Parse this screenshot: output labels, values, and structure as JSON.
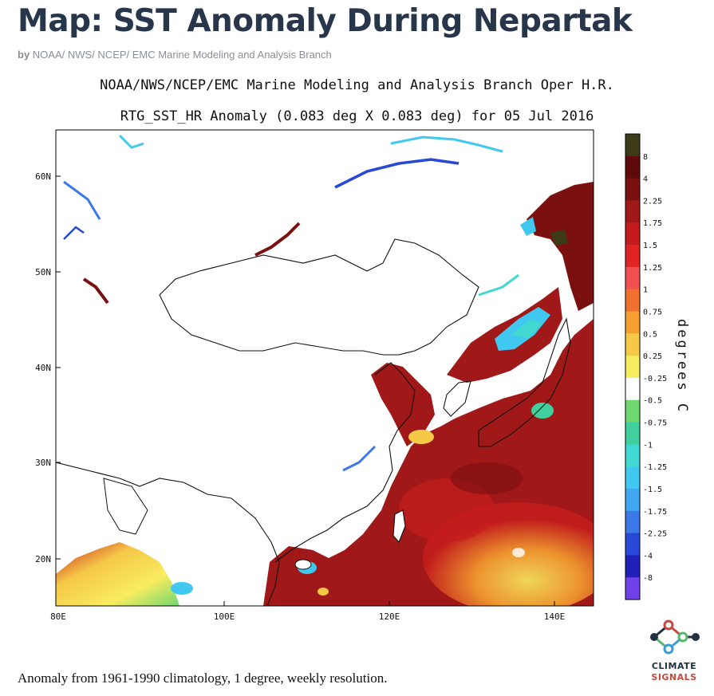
{
  "header": {
    "title": "Map: SST Anomaly During Nepartak",
    "byline_prefix": "by",
    "byline_source": "NOAA/ NWS/ NCEP/ EMC Marine Modeling and Analysis Branch"
  },
  "figure": {
    "header_line1": "NOAA/NWS/NCEP/EMC Marine Modeling and Analysis Branch Oper H.R.",
    "header_line2": "RTG_SST_HR Anomaly (0.083 deg X 0.083 deg) for 05 Jul 2016",
    "lat_labels": [
      "60N",
      "50N",
      "40N",
      "30N",
      "20N"
    ],
    "lon_labels": [
      "80E",
      "100E",
      "120E",
      "140E"
    ],
    "colorbar": {
      "units": "degrees C",
      "labels": [
        "8",
        "4",
        "2.25",
        "1.75",
        "1.5",
        "1.25",
        "1",
        "0.75",
        "0.5",
        "0.25",
        "-0.25",
        "-0.5",
        "-0.75",
        "-1",
        "-1.25",
        "-1.5",
        "-1.75",
        "-2.25",
        "-4",
        "-8"
      ],
      "colors": [
        "#3d3b17",
        "#5e0a0a",
        "#7a1010",
        "#a01818",
        "#c41c1c",
        "#e02424",
        "#f05050",
        "#f07030",
        "#f5a030",
        "#f5c848",
        "#f8ec60",
        "#ffffff",
        "#70d870",
        "#40d0a0",
        "#40d8d0",
        "#40c8f0",
        "#40a8f0",
        "#3c78e8",
        "#2848d8",
        "#2020b8",
        "#7040e8"
      ]
    },
    "caption": "Anomaly from 1961-1990 climatology, 1 degree, weekly resolution."
  },
  "branding": {
    "line1": "CLIMATE",
    "line2": "SIGNALS",
    "colors": {
      "dark": "#22313f",
      "red": "#c44a40",
      "green": "#58b76a",
      "blue": "#3a9bd5"
    }
  }
}
